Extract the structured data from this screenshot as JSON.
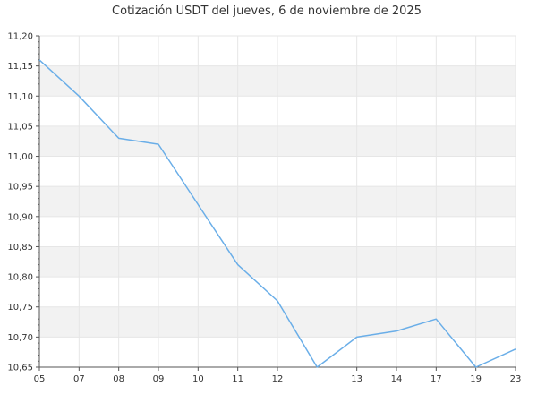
{
  "chart_data": {
    "type": "line",
    "title": "Cotización USDT del jueves, 6 de noviembre de 2025",
    "xlabel": "",
    "ylabel": "",
    "x_ticks": [
      "05",
      "07",
      "08",
      "09",
      "10",
      "11",
      "12",
      "13",
      "14",
      "17",
      "19",
      "23"
    ],
    "ylim": [
      10.65,
      11.2
    ],
    "y_ticks": [
      "10,65",
      "10,70",
      "10,75",
      "10,80",
      "10,85",
      "10,90",
      "10,95",
      "11,00",
      "11,05",
      "11,10",
      "11,15",
      "11,20"
    ],
    "series": [
      {
        "values": [
          11.16,
          11.1,
          11.03,
          11.02,
          10.92,
          10.82,
          10.76,
          10.65,
          10.7,
          10.71,
          10.73,
          10.65,
          10.68
        ]
      }
    ],
    "grid": true,
    "legend": "none",
    "colors": {
      "line": "#6aaee8",
      "band": "#f2f2f2",
      "grid": "#e6e6e6",
      "axis": "#555555",
      "text": "#333333"
    }
  }
}
